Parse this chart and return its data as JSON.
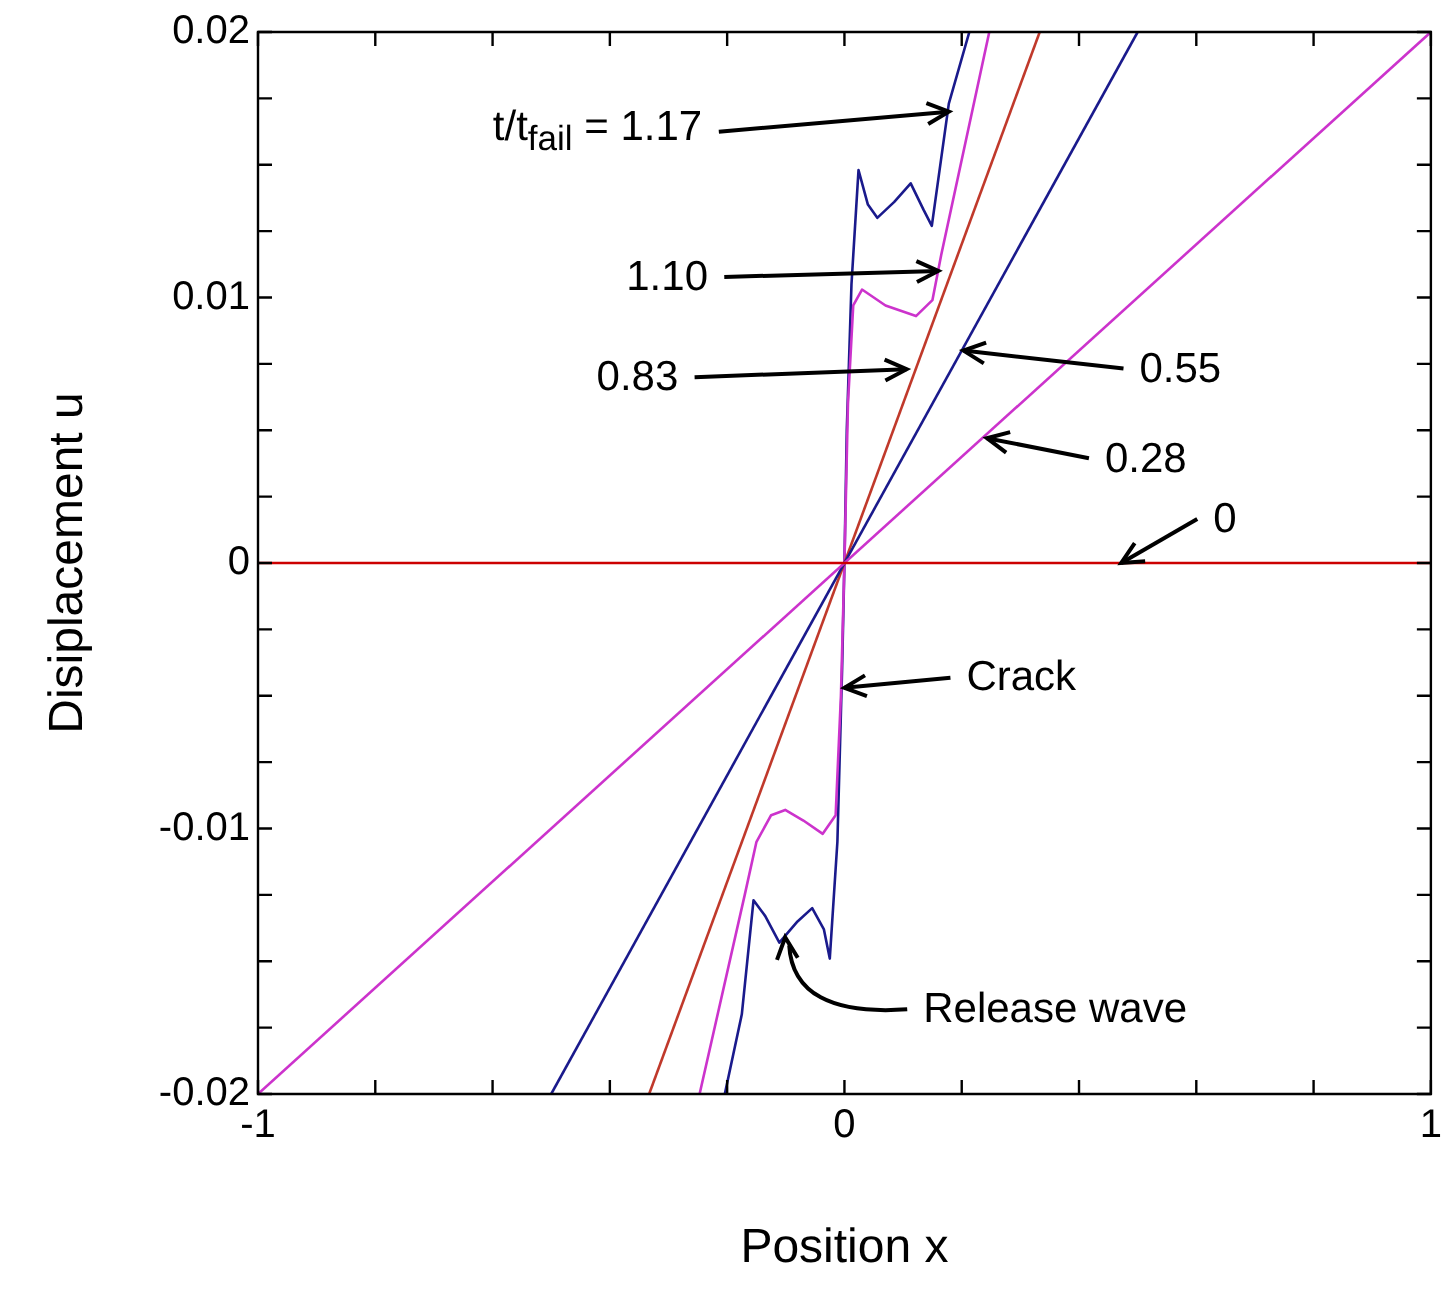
{
  "chart_data": {
    "type": "line",
    "xlabel": "Position x",
    "ylabel": "Disiplacement u",
    "xlim": [
      -1,
      1
    ],
    "ylim": [
      -0.02,
      0.02
    ],
    "xticks": [
      -1,
      {
        "value": -0.8,
        "label": null
      },
      {
        "value": -0.6,
        "label": null
      },
      {
        "value": -0.4,
        "label": null
      },
      {
        "value": -0.2,
        "label": null
      },
      0,
      {
        "value": 0.2,
        "label": null
      },
      {
        "value": 0.4,
        "label": null
      },
      {
        "value": 0.6,
        "label": null
      },
      {
        "value": 0.8,
        "label": null
      },
      1
    ],
    "yticks": [
      -0.02,
      {
        "value": -0.0175,
        "label": null
      },
      {
        "value": -0.015,
        "label": null
      },
      {
        "value": -0.0125,
        "label": null
      },
      -0.01,
      {
        "value": -0.0075,
        "label": null
      },
      {
        "value": -0.005,
        "label": null
      },
      {
        "value": -0.0025,
        "label": null
      },
      0,
      {
        "value": 0.0025,
        "label": null
      },
      {
        "value": 0.005,
        "label": null
      },
      {
        "value": 0.0075,
        "label": null
      },
      0.01,
      {
        "value": 0.0125,
        "label": null
      },
      {
        "value": 0.015,
        "label": null
      },
      {
        "value": 0.0175,
        "label": null
      },
      0.02
    ],
    "marker": "none",
    "legend": false,
    "grid": false,
    "series": [
      {
        "color": "#cc0000",
        "x": [
          -1,
          1
        ],
        "values": [
          0,
          0
        ]
      },
      {
        "color": "#cc33cc",
        "x": [
          -1,
          1
        ],
        "values": [
          -0.02,
          0.02
        ]
      },
      {
        "color": "#1a1a8c",
        "x": [
          -0.5,
          0.5
        ],
        "values": [
          -0.02,
          0.02
        ]
      },
      {
        "color": "#c0392b",
        "x": [
          -0.333,
          0.333
        ],
        "values": [
          -0.02,
          0.02
        ]
      },
      {
        "color": "#cc33cc",
        "x": [
          -0.247,
          -0.17,
          -0.15,
          -0.125,
          -0.101,
          -0.07,
          -0.037,
          -0.015,
          -0.006,
          0,
          0.006,
          0.015,
          0.03,
          0.07,
          0.122,
          0.15,
          0.165,
          0.247
        ],
        "values": [
          -0.02,
          -0.0125,
          -0.0105,
          -0.0095,
          -0.0093,
          -0.0097,
          -0.0102,
          -0.0095,
          -0.005,
          0,
          0.006,
          0.0097,
          0.0103,
          0.0097,
          0.0093,
          0.0099,
          0.0116,
          0.02
        ]
      },
      {
        "color": "#1a1a8c",
        "x": [
          -0.204,
          -0.175,
          -0.155,
          -0.135,
          -0.111,
          -0.08,
          -0.055,
          -0.035,
          -0.025,
          -0.012,
          -0.004,
          0,
          0.004,
          0.012,
          0.024,
          0.04,
          0.056,
          0.085,
          0.113,
          0.135,
          0.149,
          0.178,
          0.213
        ],
        "values": [
          -0.02,
          -0.017,
          -0.0127,
          -0.0133,
          -0.0143,
          -0.0135,
          -0.013,
          -0.0138,
          -0.0149,
          -0.0105,
          -0.004,
          0,
          0.005,
          0.0105,
          0.0148,
          0.0135,
          0.013,
          0.0136,
          0.0143,
          0.0133,
          0.0127,
          0.0173,
          0.02
        ]
      }
    ],
    "annotations": [
      {
        "text": "t/t$_{fail}$ = 1.17",
        "x": 0.178,
        "y": 0.017
      },
      {
        "text": "1.10",
        "x": 0.16,
        "y": 0.011
      },
      {
        "text": "0.83",
        "x": 0.106,
        "y": 0.0073
      },
      {
        "text": "0.55",
        "x": 0.203,
        "y": 0.008
      },
      {
        "text": "0.28",
        "x": 0.243,
        "y": 0.0047
      },
      {
        "text": "0",
        "x": 0.472,
        "y": 0
      },
      {
        "text": "Crack",
        "x": 0,
        "y": -0.0047
      },
      {
        "text": "Release wave",
        "x": -0.101,
        "y": -0.0141
      }
    ]
  }
}
